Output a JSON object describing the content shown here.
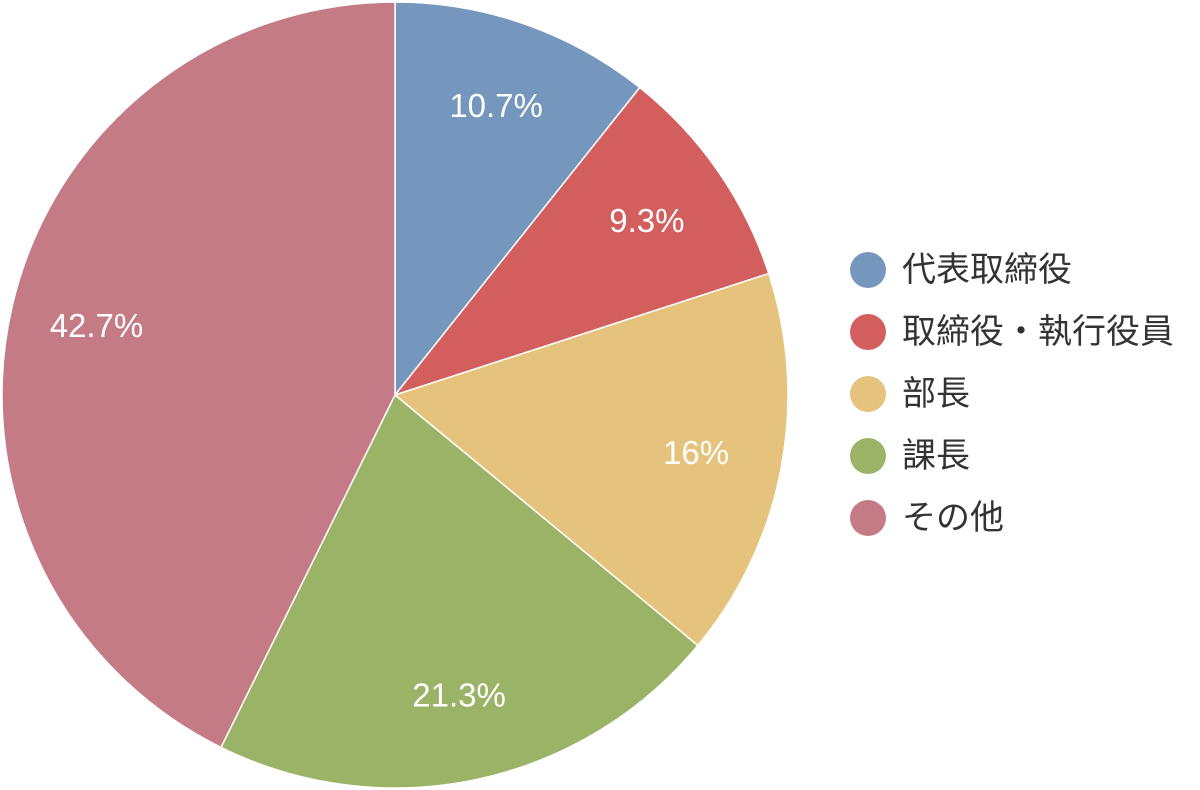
{
  "chart_data": {
    "type": "pie",
    "categories": [
      "代表取締役",
      "取締役・執行役員",
      "部長",
      "課長",
      "その他"
    ],
    "values": [
      10.7,
      9.3,
      16,
      21.3,
      42.7
    ],
    "labels": [
      "10.7%",
      "9.3%",
      "16%",
      "21.3%",
      "42.7%"
    ],
    "colors": [
      "#7596bd",
      "#d35e5e",
      "#e6c37d",
      "#9bb366",
      "#c47b86"
    ],
    "legend": "right",
    "start_angle": "top",
    "direction": "clockwise"
  }
}
